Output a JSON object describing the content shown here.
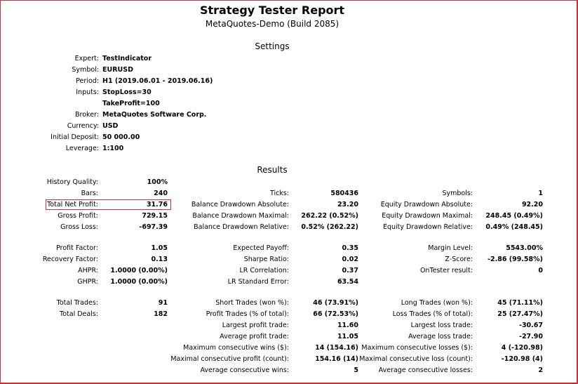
{
  "title": "Strategy Tester Report",
  "subtitle": "MetaQuotes-Demo (Build 2085)",
  "settings": {
    "heading": "Settings",
    "rows": [
      {
        "label": "Expert:",
        "value": "TestIndicator"
      },
      {
        "label": "Symbol:",
        "value": "EURUSD"
      },
      {
        "label": "Period:",
        "value": "H1 (2019.06.01 - 2019.06.16)"
      },
      {
        "label": "Inputs:",
        "value": "StopLoss=30"
      },
      {
        "label": "",
        "value": "TakeProfit=100"
      },
      {
        "label": "Broker:",
        "value": "MetaQuotes Software Corp."
      },
      {
        "label": "Currency:",
        "value": "USD"
      },
      {
        "label": "Initial Deposit:",
        "value": "50 000.00"
      },
      {
        "label": "Leverage:",
        "value": "1:100"
      }
    ]
  },
  "results": {
    "heading": "Results",
    "col1": [
      {
        "label": "History Quality:",
        "value": "100%"
      },
      {
        "label": "Bars:",
        "value": "240"
      },
      {
        "label": "Total Net Profit:",
        "value": "31.76"
      },
      {
        "label": "Gross Profit:",
        "value": "729.15"
      },
      {
        "label": "Gross Loss:",
        "value": "-697.39"
      },
      {
        "label": "Profit Factor:",
        "value": "1.05"
      },
      {
        "label": "Recovery Factor:",
        "value": "0.13"
      },
      {
        "label": "AHPR:",
        "value": "1.0000 (0.00%)"
      },
      {
        "label": "GHPR:",
        "value": "1.0000 (0.00%)"
      },
      {
        "label": "Total Trades:",
        "value": "91"
      },
      {
        "label": "Total Deals:",
        "value": "182"
      }
    ],
    "col2": [
      {
        "label": "Ticks:",
        "value": "580436"
      },
      {
        "label": "Balance Drawdown Absolute:",
        "value": "23.20"
      },
      {
        "label": "Balance Drawdown Maximal:",
        "value": "262.22 (0.52%)"
      },
      {
        "label": "Balance Drawdown Relative:",
        "value": "0.52% (262.22)"
      },
      {
        "label": "Expected Payoff:",
        "value": "0.35"
      },
      {
        "label": "Sharpe Ratio:",
        "value": "0.02"
      },
      {
        "label": "LR Correlation:",
        "value": "0.37"
      },
      {
        "label": "LR Standard Error:",
        "value": "63.54"
      },
      {
        "label": "Short Trades (won %):",
        "value": "46 (73.91%)"
      },
      {
        "label": "Profit Trades (% of total):",
        "value": "66 (72.53%)"
      },
      {
        "label": "Largest profit trade:",
        "value": "11.60"
      },
      {
        "label": "Average profit trade:",
        "value": "11.05"
      },
      {
        "label": "Maximum consecutive wins ($):",
        "value": "14 (154.16)"
      },
      {
        "label": "Maximal consecutive profit (count):",
        "value": "154.16 (14)"
      },
      {
        "label": "Average consecutive wins:",
        "value": "5"
      }
    ],
    "col3": [
      {
        "label": "Symbols:",
        "value": "1"
      },
      {
        "label": "Equity Drawdown Absolute:",
        "value": "92.20"
      },
      {
        "label": "Equity Drawdown Maximal:",
        "value": "248.45 (0.49%)"
      },
      {
        "label": "Equity Drawdown Relative:",
        "value": "0.49% (248.45)"
      },
      {
        "label": "Margin Level:",
        "value": "5543.00%"
      },
      {
        "label": "Z-Score:",
        "value": "-2.86 (99.58%)"
      },
      {
        "label": "OnTester result:",
        "value": "0"
      },
      {
        "label": "Long Trades (won %):",
        "value": "45 (71.11%)"
      },
      {
        "label": "Loss Trades (% of total):",
        "value": "25 (27.47%)"
      },
      {
        "label": "Largest loss trade:",
        "value": "-30.67"
      },
      {
        "label": "Average loss trade:",
        "value": "-27.90"
      },
      {
        "label": "Maximum consecutive losses ($):",
        "value": "4 (-120.98)"
      },
      {
        "label": "Maximal consecutive loss (count):",
        "value": "-120.98 (4)"
      },
      {
        "label": "Average consecutive losses:",
        "value": "2"
      }
    ]
  }
}
